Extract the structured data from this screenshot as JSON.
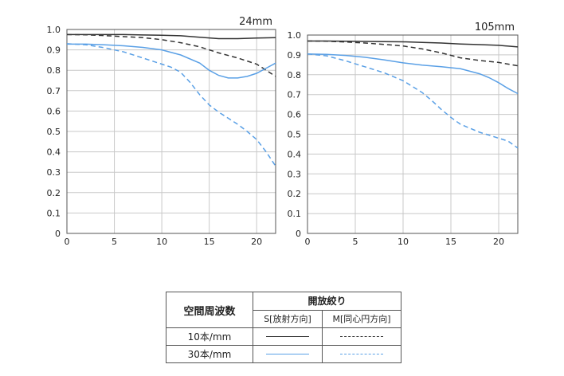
{
  "chart_data": [
    {
      "type": "line",
      "title": "24mm",
      "xlim": [
        0,
        22
      ],
      "ylim": [
        0,
        1.0
      ],
      "xticks": [
        0,
        5,
        10,
        15,
        20
      ],
      "yticks": [
        "0",
        "0.1",
        "0.2",
        "0.3",
        "0.4",
        "0.5",
        "0.6",
        "0.7",
        "0.8",
        "0.9",
        "1.0"
      ],
      "grid": true,
      "series": [
        {
          "name": "10本/mm S",
          "style": "solid",
          "color": "#333333",
          "x": [
            0,
            2,
            4,
            6,
            8,
            10,
            12,
            14,
            16,
            18,
            20,
            22
          ],
          "y": [
            0.975,
            0.975,
            0.975,
            0.975,
            0.973,
            0.972,
            0.969,
            0.962,
            0.955,
            0.955,
            0.958,
            0.96
          ]
        },
        {
          "name": "10本/mm M",
          "style": "dashed",
          "color": "#333333",
          "x": [
            0,
            2,
            4,
            6,
            8,
            10,
            12,
            14,
            16,
            18,
            20,
            22
          ],
          "y": [
            0.975,
            0.974,
            0.97,
            0.965,
            0.96,
            0.95,
            0.935,
            0.915,
            0.885,
            0.86,
            0.83,
            0.77
          ]
        },
        {
          "name": "30本/mm S",
          "style": "solid",
          "color": "#5aa0e6",
          "x": [
            0,
            2,
            4,
            6,
            8,
            10,
            12,
            14,
            15,
            16,
            17,
            18,
            19,
            20,
            21,
            22
          ],
          "y": [
            0.928,
            0.928,
            0.925,
            0.92,
            0.912,
            0.9,
            0.875,
            0.835,
            0.8,
            0.775,
            0.762,
            0.762,
            0.77,
            0.785,
            0.81,
            0.835
          ]
        },
        {
          "name": "30本/mm M",
          "style": "dashed",
          "color": "#5aa0e6",
          "x": [
            0,
            2,
            4,
            6,
            8,
            10,
            11,
            12,
            13,
            14,
            15,
            16,
            17,
            18,
            19,
            20,
            21,
            22
          ],
          "y": [
            0.93,
            0.925,
            0.91,
            0.89,
            0.86,
            0.83,
            0.815,
            0.79,
            0.74,
            0.68,
            0.63,
            0.595,
            0.565,
            0.535,
            0.5,
            0.46,
            0.4,
            0.33
          ]
        }
      ]
    },
    {
      "type": "line",
      "title": "105mm",
      "xlim": [
        0,
        22
      ],
      "ylim": [
        0,
        1.0
      ],
      "xticks": [
        0,
        5,
        10,
        15,
        20
      ],
      "yticks": [
        "0",
        "0.1",
        "0.2",
        "0.3",
        "0.4",
        "0.5",
        "0.6",
        "0.7",
        "0.8",
        "0.9",
        "1.0"
      ],
      "grid": true,
      "series": [
        {
          "name": "10本/mm S",
          "style": "solid",
          "color": "#333333",
          "x": [
            0,
            2,
            4,
            6,
            8,
            10,
            12,
            14,
            16,
            18,
            20,
            22
          ],
          "y": [
            0.97,
            0.97,
            0.969,
            0.968,
            0.967,
            0.966,
            0.963,
            0.96,
            0.955,
            0.952,
            0.948,
            0.94
          ]
        },
        {
          "name": "10本/mm M",
          "style": "dashed",
          "color": "#333333",
          "x": [
            0,
            2,
            4,
            6,
            8,
            10,
            12,
            14,
            16,
            18,
            20,
            22
          ],
          "y": [
            0.97,
            0.969,
            0.965,
            0.96,
            0.953,
            0.945,
            0.93,
            0.91,
            0.885,
            0.872,
            0.862,
            0.845
          ]
        },
        {
          "name": "30本/mm S",
          "style": "solid",
          "color": "#5aa0e6",
          "x": [
            0,
            2,
            4,
            6,
            8,
            10,
            12,
            14,
            16,
            18,
            19,
            20,
            21,
            22
          ],
          "y": [
            0.905,
            0.903,
            0.897,
            0.888,
            0.875,
            0.86,
            0.848,
            0.84,
            0.83,
            0.805,
            0.785,
            0.76,
            0.73,
            0.705
          ]
        },
        {
          "name": "30本/mm M",
          "style": "dashed",
          "color": "#5aa0e6",
          "x": [
            0,
            2,
            4,
            6,
            8,
            10,
            11,
            12,
            13,
            14,
            15,
            16,
            17,
            18,
            19,
            20,
            21,
            22
          ],
          "y": [
            0.905,
            0.895,
            0.87,
            0.84,
            0.81,
            0.77,
            0.74,
            0.71,
            0.67,
            0.625,
            0.585,
            0.55,
            0.53,
            0.51,
            0.495,
            0.48,
            0.465,
            0.43
          ]
        }
      ]
    }
  ],
  "legend": {
    "header": "空間周波数",
    "group": "開放絞り",
    "col_s": "S[放射方向]",
    "col_m": "M[同心円方向]",
    "row_10": "10本/mm",
    "row_30": "30本/mm"
  }
}
